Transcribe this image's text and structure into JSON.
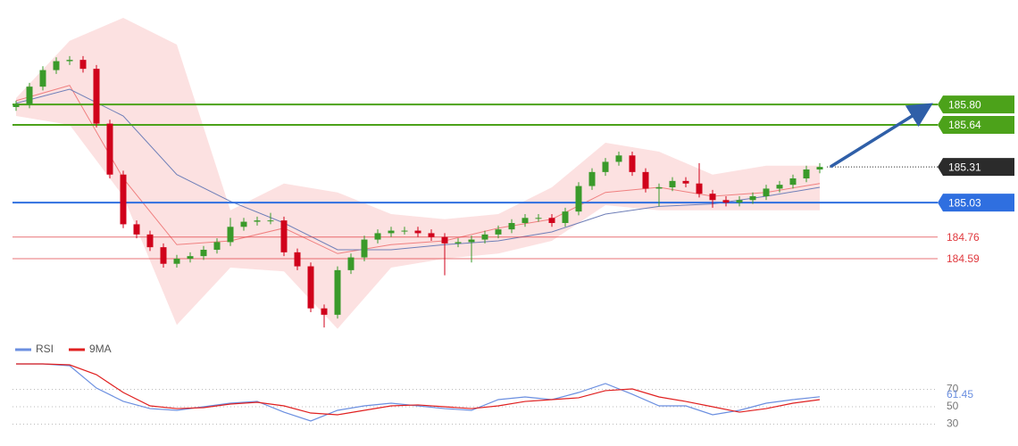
{
  "chart_data": [
    {
      "type": "candlestick",
      "ylim": [
        183.96,
        186.62
      ],
      "up_color": "#3a9a2a",
      "down_color": "#d0021b",
      "open": [
        185.78,
        185.8,
        185.94,
        186.07,
        186.14,
        186.15,
        186.08,
        185.65,
        185.25,
        184.86,
        184.78,
        184.68,
        184.55,
        184.59,
        184.61,
        184.66,
        184.72,
        184.84,
        184.88,
        184.89,
        184.89,
        184.64,
        184.53,
        184.2,
        184.15,
        184.5,
        184.6,
        184.74,
        184.79,
        184.81,
        184.81,
        184.79,
        184.76,
        184.71,
        184.72,
        184.74,
        184.78,
        184.82,
        184.87,
        184.91,
        184.91,
        184.87,
        184.96,
        185.16,
        185.27,
        185.35,
        185.4,
        185.27,
        185.14,
        185.15,
        185.2,
        185.18,
        185.1,
        185.05,
        185.03,
        185.05,
        185.08,
        185.14,
        185.17,
        185.22,
        185.29
      ],
      "high": [
        185.83,
        185.97,
        186.1,
        186.17,
        186.18,
        186.18,
        186.11,
        185.68,
        185.28,
        184.89,
        184.81,
        184.71,
        184.62,
        184.64,
        184.69,
        184.75,
        184.91,
        184.91,
        184.92,
        184.95,
        184.92,
        184.67,
        184.56,
        184.23,
        184.53,
        184.63,
        184.77,
        184.82,
        184.84,
        184.84,
        184.84,
        184.82,
        184.79,
        184.75,
        184.77,
        184.81,
        184.85,
        184.9,
        184.94,
        184.94,
        184.94,
        184.99,
        185.19,
        185.3,
        185.38,
        185.43,
        185.43,
        185.3,
        185.18,
        185.23,
        185.23,
        185.34,
        185.13,
        185.08,
        185.08,
        185.11,
        185.17,
        185.2,
        185.25,
        185.32,
        185.34
      ],
      "low": [
        185.75,
        185.77,
        185.91,
        186.04,
        186.11,
        186.05,
        185.62,
        185.22,
        184.83,
        184.75,
        184.65,
        184.52,
        184.52,
        184.56,
        184.58,
        184.63,
        184.69,
        184.81,
        184.85,
        184.86,
        184.61,
        184.5,
        184.17,
        184.05,
        184.12,
        184.47,
        184.57,
        184.71,
        184.76,
        184.78,
        184.76,
        184.73,
        184.46,
        184.68,
        184.56,
        184.71,
        184.75,
        184.79,
        184.84,
        184.88,
        184.84,
        184.84,
        184.93,
        185.13,
        185.24,
        185.32,
        185.24,
        185.11,
        185.0,
        185.12,
        185.15,
        185.07,
        184.99,
        185.0,
        185.0,
        185.02,
        185.05,
        185.11,
        185.14,
        185.19,
        185.26
      ],
      "close": [
        185.8,
        185.94,
        186.07,
        186.14,
        186.15,
        186.08,
        185.65,
        185.25,
        184.86,
        184.78,
        184.68,
        184.55,
        184.59,
        184.61,
        184.66,
        184.72,
        184.84,
        184.88,
        184.89,
        184.89,
        184.64,
        184.53,
        184.2,
        184.15,
        184.5,
        184.6,
        184.74,
        184.79,
        184.81,
        184.81,
        184.79,
        184.76,
        184.71,
        184.72,
        184.74,
        184.78,
        184.82,
        184.87,
        184.91,
        184.91,
        184.87,
        184.96,
        185.16,
        185.27,
        185.35,
        185.4,
        185.27,
        185.14,
        185.15,
        185.2,
        185.18,
        185.1,
        185.05,
        185.03,
        185.05,
        185.08,
        185.14,
        185.17,
        185.22,
        185.29,
        185.31
      ],
      "band_color": "#fbdcdc",
      "band_upper": [
        185.85,
        186.3,
        186.48,
        186.27,
        184.97,
        185.18,
        185.11,
        184.94,
        184.9,
        184.94,
        185.15,
        185.5,
        185.43,
        185.25,
        185.32,
        185.32
      ],
      "band_lower": [
        185.71,
        185.64,
        185.08,
        184.07,
        184.52,
        184.49,
        184.04,
        184.52,
        184.59,
        184.63,
        184.73,
        185.01,
        184.97,
        184.97,
        184.97,
        184.97
      ],
      "ma_fast_color": "#f08080",
      "ma_fast": [
        185.83,
        185.95,
        185.22,
        184.7,
        184.73,
        184.83,
        184.63,
        184.7,
        184.73,
        184.83,
        184.9,
        185.11,
        185.15,
        185.08,
        185.11,
        185.18
      ],
      "ma_slow_color": "#6f7fb8",
      "ma_slow": [
        185.81,
        185.92,
        185.71,
        185.25,
        185.04,
        184.87,
        184.66,
        184.66,
        184.7,
        184.73,
        184.8,
        184.94,
        185.0,
        185.02,
        185.08,
        185.15
      ],
      "levels": [
        {
          "value": 185.8,
          "label": "185.80",
          "color": "#4ca21a",
          "tag": "box",
          "line": "solid"
        },
        {
          "value": 185.64,
          "color": "#4ca21a",
          "tag": "box",
          "line": "solid"
        },
        {
          "value": 185.31,
          "color": "#2b2b2b",
          "tag": "box",
          "line": "dotted"
        },
        {
          "value": 185.03,
          "color": "#2f6fe0",
          "tag": "box",
          "line": "solid"
        },
        {
          "value": 184.76,
          "color": "#e0393e",
          "tag": "text",
          "line": "thin"
        },
        {
          "value": 184.59,
          "color": "#e0393e",
          "tag": "text",
          "line": "thin"
        }
      ]
    },
    {
      "type": "line",
      "ylim": [
        20,
        105
      ],
      "yticks": [
        30,
        50,
        70
      ],
      "grid": true,
      "current": 61.45,
      "series": [
        {
          "name": "RSI",
          "color": "#6b8fe0",
          "values": [
            99.2,
            99.2,
            97.2,
            71.5,
            56.2,
            47.9,
            45.9,
            50,
            54.1,
            56.2,
            43.8,
            33.6,
            45.9,
            51.0,
            54.1,
            51.0,
            47.9,
            45.9,
            58.2,
            61.3,
            58.2,
            66.4,
            76.7,
            64.4,
            51.0,
            51.0,
            40.8,
            45.9,
            54.1,
            58.2,
            61.45
          ]
        },
        {
          "name": "9MA",
          "color": "#e02020",
          "values": [
            99.2,
            99.2,
            98.2,
            86.9,
            66.4,
            51.0,
            47.9,
            49.0,
            53.1,
            55.1,
            51.0,
            42.8,
            40.8,
            45.9,
            51.0,
            52.1,
            50.0,
            47.9,
            51.0,
            56.1,
            58.2,
            60.3,
            68.5,
            70.5,
            61.3,
            56.1,
            50.0,
            43.8,
            47.9,
            54.1,
            58.2
          ]
        }
      ]
    }
  ]
}
